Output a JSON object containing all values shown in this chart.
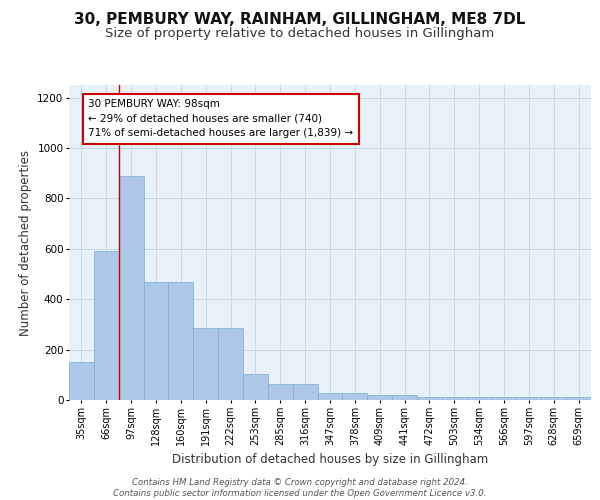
{
  "title1": "30, PEMBURY WAY, RAINHAM, GILLINGHAM, ME8 7DL",
  "title2": "Size of property relative to detached houses in Gillingham",
  "xlabel": "Distribution of detached houses by size in Gillingham",
  "ylabel": "Number of detached properties",
  "categories": [
    "35sqm",
    "66sqm",
    "97sqm",
    "128sqm",
    "160sqm",
    "191sqm",
    "222sqm",
    "253sqm",
    "285sqm",
    "316sqm",
    "347sqm",
    "378sqm",
    "409sqm",
    "441sqm",
    "472sqm",
    "503sqm",
    "534sqm",
    "566sqm",
    "597sqm",
    "628sqm",
    "659sqm"
  ],
  "values": [
    152,
    590,
    890,
    470,
    470,
    285,
    285,
    105,
    63,
    63,
    28,
    28,
    18,
    18,
    10,
    10,
    10,
    10,
    10,
    10,
    10
  ],
  "bar_color": "#aec6e8",
  "bar_edge_color": "#7aafd4",
  "grid_color": "#c8d8e8",
  "bg_color": "#e8f0f8",
  "vline_color": "#cc0000",
  "annotation_text": "30 PEMBURY WAY: 98sqm\n← 29% of detached houses are smaller (740)\n71% of semi-detached houses are larger (1,839) →",
  "annotation_box_color": "#ffffff",
  "annotation_box_edge": "#cc0000",
  "footer": "Contains HM Land Registry data © Crown copyright and database right 2024.\nContains public sector information licensed under the Open Government Licence v3.0.",
  "ylim": [
    0,
    1250
  ],
  "yticks": [
    0,
    200,
    400,
    600,
    800,
    1000,
    1200
  ],
  "title1_fontsize": 11,
  "title2_fontsize": 9.5,
  "xlabel_fontsize": 8.5,
  "ylabel_fontsize": 8.5,
  "footer_fontsize": 6.2
}
